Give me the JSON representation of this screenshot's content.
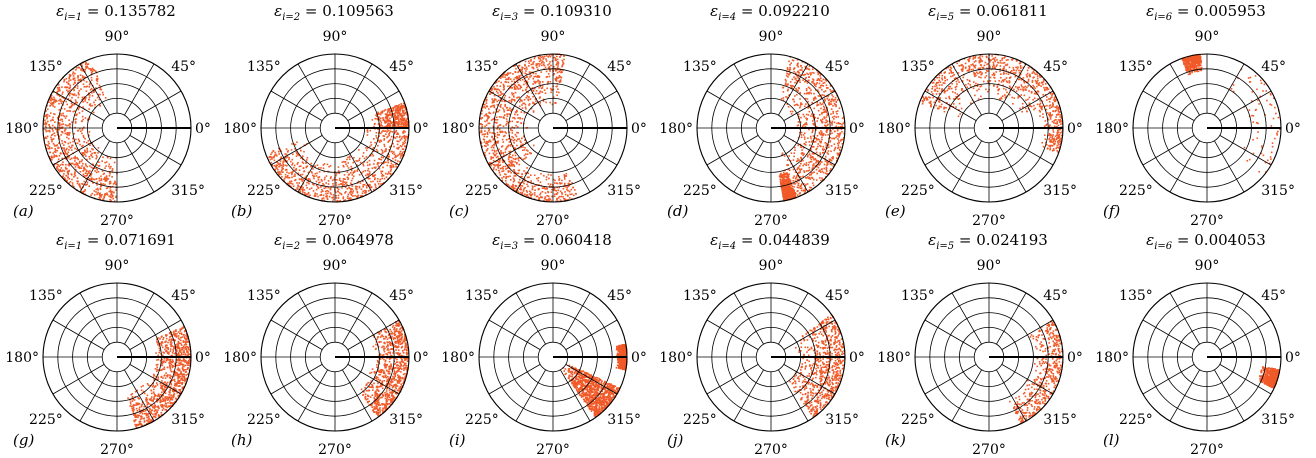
{
  "chart_data": [
    {
      "type": "scatter",
      "projection": "polar",
      "label": "(a)",
      "eps_index": "1",
      "eps_value": "0.135782",
      "theta_ticks": [
        "90°",
        "45°",
        "0°",
        "315°",
        "270°",
        "225°",
        "180°",
        "135°"
      ],
      "point_color": "#f05a28",
      "regions": [
        {
          "theta_deg": [
            110,
            270
          ],
          "r": [
            0.35,
            1.0
          ],
          "density": 1.0
        }
      ]
    },
    {
      "type": "scatter",
      "projection": "polar",
      "label": "(b)",
      "eps_index": "2",
      "eps_value": "0.109563",
      "theta_ticks": [
        "90°",
        "45°",
        "0°",
        "315°",
        "270°",
        "225°",
        "180°",
        "135°"
      ],
      "point_color": "#f05a28",
      "regions": [
        {
          "theta_deg": [
            200,
            360
          ],
          "r": [
            0.4,
            1.0
          ],
          "density": 0.9
        },
        {
          "theta_deg": [
            0,
            20
          ],
          "r": [
            0.5,
            1.0
          ],
          "density": 0.4
        }
      ]
    },
    {
      "type": "scatter",
      "projection": "polar",
      "label": "(c)",
      "eps_index": "3",
      "eps_value": "0.109310",
      "theta_ticks": [
        "90°",
        "45°",
        "0°",
        "315°",
        "270°",
        "225°",
        "180°",
        "135°"
      ],
      "point_color": "#f05a28",
      "regions": [
        {
          "theta_deg": [
            80,
            230
          ],
          "r": [
            0.3,
            1.0
          ],
          "density": 1.0
        },
        {
          "theta_deg": [
            230,
            290
          ],
          "r": [
            0.6,
            1.0
          ],
          "density": 0.3
        }
      ]
    },
    {
      "type": "scatter",
      "projection": "polar",
      "label": "(d)",
      "eps_index": "4",
      "eps_value": "0.092210",
      "theta_ticks": [
        "90°",
        "45°",
        "0°",
        "315°",
        "270°",
        "225°",
        "180°",
        "135°"
      ],
      "point_color": "#f05a28",
      "regions": [
        {
          "theta_deg": [
            -70,
            75
          ],
          "r": [
            0.3,
            1.0
          ],
          "density": 0.9
        },
        {
          "theta_deg": [
            280,
            290
          ],
          "r": [
            0.6,
            1.0
          ],
          "density": 0.6
        }
      ]
    },
    {
      "type": "scatter",
      "projection": "polar",
      "label": "(e)",
      "eps_index": "5",
      "eps_value": "0.061811",
      "theta_ticks": [
        "90°",
        "45°",
        "0°",
        "315°",
        "270°",
        "225°",
        "180°",
        "135°"
      ],
      "point_color": "#f05a28",
      "regions": [
        {
          "theta_deg": [
            20,
            160
          ],
          "r": [
            0.4,
            1.0
          ],
          "density": 0.7
        },
        {
          "theta_deg": [
            -20,
            20
          ],
          "r": [
            0.7,
            1.0
          ],
          "density": 0.2
        }
      ]
    },
    {
      "type": "scatter",
      "projection": "polar",
      "label": "(f)",
      "eps_index": "6",
      "eps_value": "0.005953",
      "theta_ticks": [
        "90°",
        "45°",
        "0°",
        "315°",
        "270°",
        "225°",
        "180°",
        "135°"
      ],
      "point_color": "#f05a28",
      "regions": [
        {
          "theta_deg": [
            95,
            110
          ],
          "r": [
            0.75,
            1.0
          ],
          "density": 0.4
        },
        {
          "theta_deg": [
            -40,
            60
          ],
          "r": [
            0.5,
            1.0
          ],
          "density": 0.08
        }
      ]
    },
    {
      "type": "scatter",
      "projection": "polar",
      "label": "(g)",
      "eps_index": "1",
      "eps_value": "0.071691",
      "theta_ticks": [
        "90°",
        "45°",
        "0°",
        "315°",
        "270°",
        "225°",
        "180°",
        "135°"
      ],
      "point_color": "#f05a28",
      "regions": [
        {
          "theta_deg": [
            -75,
            25
          ],
          "r": [
            0.5,
            1.0
          ],
          "density": 1.0
        }
      ]
    },
    {
      "type": "scatter",
      "projection": "polar",
      "label": "(h)",
      "eps_index": "2",
      "eps_value": "0.064978",
      "theta_ticks": [
        "90°",
        "45°",
        "0°",
        "315°",
        "270°",
        "225°",
        "180°",
        "135°"
      ],
      "point_color": "#f05a28",
      "regions": [
        {
          "theta_deg": [
            -55,
            30
          ],
          "r": [
            0.5,
            1.0
          ],
          "density": 0.9
        }
      ]
    },
    {
      "type": "scatter",
      "projection": "polar",
      "label": "(i)",
      "eps_index": "3",
      "eps_value": "0.060418",
      "theta_ticks": [
        "90°",
        "45°",
        "0°",
        "315°",
        "270°",
        "225°",
        "180°",
        "135°"
      ],
      "point_color": "#f05a28",
      "regions": [
        {
          "theta_deg": [
            -55,
            -25
          ],
          "r": [
            0.2,
            1.0
          ],
          "density": 1.0
        },
        {
          "theta_deg": [
            -10,
            10
          ],
          "r": [
            0.85,
            1.0
          ],
          "density": 0.5
        }
      ]
    },
    {
      "type": "scatter",
      "projection": "polar",
      "label": "(j)",
      "eps_index": "4",
      "eps_value": "0.044839",
      "theta_ticks": [
        "90°",
        "45°",
        "0°",
        "315°",
        "270°",
        "225°",
        "180°",
        "135°"
      ],
      "point_color": "#f05a28",
      "regions": [
        {
          "theta_deg": [
            -55,
            35
          ],
          "r": [
            0.35,
            1.0
          ],
          "density": 0.8
        }
      ]
    },
    {
      "type": "scatter",
      "projection": "polar",
      "label": "(k)",
      "eps_index": "5",
      "eps_value": "0.024193",
      "theta_ticks": [
        "90°",
        "45°",
        "0°",
        "315°",
        "270°",
        "225°",
        "180°",
        "135°"
      ],
      "point_color": "#f05a28",
      "regions": [
        {
          "theta_deg": [
            -65,
            30
          ],
          "r": [
            0.6,
            1.0
          ],
          "density": 0.5
        }
      ]
    },
    {
      "type": "scatter",
      "projection": "polar",
      "label": "(l)",
      "eps_index": "6",
      "eps_value": "0.004053",
      "theta_ticks": [
        "90°",
        "45°",
        "0°",
        "315°",
        "270°",
        "225°",
        "180°",
        "135°"
      ],
      "point_color": "#f05a28",
      "regions": [
        {
          "theta_deg": [
            -25,
            -10
          ],
          "r": [
            0.75,
            1.0
          ],
          "density": 0.6
        }
      ]
    }
  ]
}
